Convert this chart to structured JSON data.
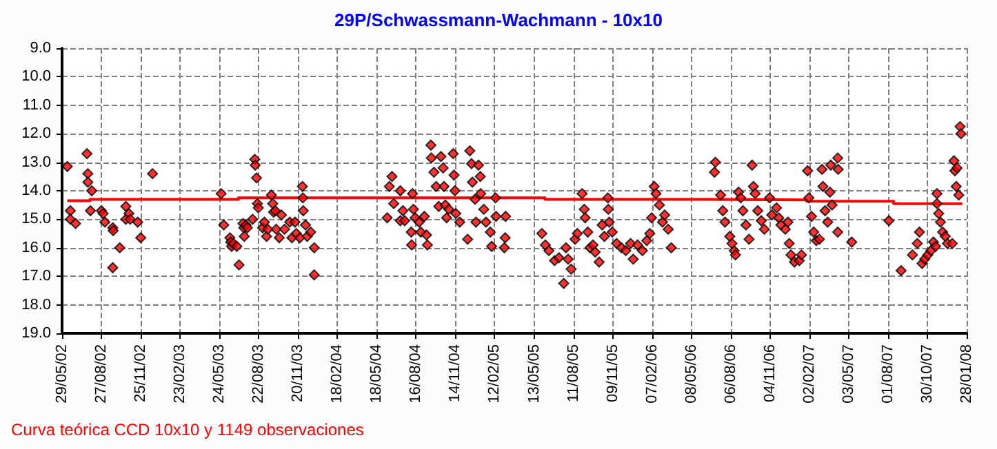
{
  "chart_data": {
    "type": "scatter",
    "title": "29P/Schwassmann-Wachmann - 10x10",
    "annotations": [
      "Curva teórica CCD 10x10 y 1149 observaciones"
    ],
    "grid": true,
    "xlim": [
      "2002-05-29",
      "2008-01-28"
    ],
    "xticks": [
      {
        "value": "2002-05-29",
        "label": "29/05/02"
      },
      {
        "value": "2002-08-27",
        "label": "27/08/02"
      },
      {
        "value": "2002-11-25",
        "label": "25/11/02"
      },
      {
        "value": "2003-02-23",
        "label": "23/02/03"
      },
      {
        "value": "2003-05-24",
        "label": "24/05/03"
      },
      {
        "value": "2003-08-22",
        "label": "22/08/03"
      },
      {
        "value": "2003-11-20",
        "label": "20/11/03"
      },
      {
        "value": "2004-02-18",
        "label": "18/02/04"
      },
      {
        "value": "2004-05-18",
        "label": "18/05/04"
      },
      {
        "value": "2004-08-16",
        "label": "16/08/04"
      },
      {
        "value": "2004-11-14",
        "label": "14/11/04"
      },
      {
        "value": "2005-02-12",
        "label": "12/02/05"
      },
      {
        "value": "2005-05-13",
        "label": "13/05/05"
      },
      {
        "value": "2005-08-11",
        "label": "11/08/05"
      },
      {
        "value": "2005-11-09",
        "label": "09/11/05"
      },
      {
        "value": "2006-02-07",
        "label": "07/02/06"
      },
      {
        "value": "2006-05-08",
        "label": "08/05/06"
      },
      {
        "value": "2006-08-06",
        "label": "06/08/06"
      },
      {
        "value": "2006-11-04",
        "label": "04/11/06"
      },
      {
        "value": "2007-02-02",
        "label": "02/02/07"
      },
      {
        "value": "2007-05-03",
        "label": "03/05/07"
      },
      {
        "value": "2007-08-01",
        "label": "01/08/07"
      },
      {
        "value": "2007-10-30",
        "label": "30/10/07"
      },
      {
        "value": "2008-01-28",
        "label": "28/01/08"
      }
    ],
    "ylim": [
      19,
      9
    ],
    "yticks": [
      {
        "value": 9,
        "label": "9.0"
      },
      {
        "value": 10,
        "label": "10.0"
      },
      {
        "value": 11,
        "label": "11.0"
      },
      {
        "value": 12,
        "label": "12.0"
      },
      {
        "value": 13,
        "label": "13.0"
      },
      {
        "value": 14,
        "label": "14.0"
      },
      {
        "value": 15,
        "label": "15.0"
      },
      {
        "value": 16,
        "label": "16.0"
      },
      {
        "value": 17,
        "label": "17.0"
      },
      {
        "value": 18,
        "label": "18.0"
      },
      {
        "value": 19,
        "label": "19.0"
      }
    ],
    "series": [
      {
        "color": "#ff0000",
        "marker": "diamond",
        "x": [
          "2002-06-10",
          "2002-06-17",
          "2002-06-17",
          "2002-06-29",
          "2002-07-25",
          "2002-07-27",
          "2002-07-27",
          "2002-08-05",
          "2002-08-02",
          "2002-08-27",
          "2002-08-31",
          "2002-09-04",
          "2002-09-22",
          "2002-09-23",
          "2002-09-22",
          "2002-10-08",
          "2002-10-22",
          "2002-10-22",
          "2002-10-29",
          "2002-11-01",
          "2002-11-18",
          "2002-11-25",
          "2002-12-22",
          "2003-05-28",
          "2003-06-03",
          "2003-06-17",
          "2003-06-19",
          "2003-06-21",
          "2003-06-25",
          "2003-07-03",
          "2003-07-08",
          "2003-07-17",
          "2003-07-19",
          "2003-07-20",
          "2003-07-24",
          "2003-07-27",
          "2003-08-08",
          "2003-08-13",
          "2003-08-14",
          "2003-08-17",
          "2003-08-19",
          "2003-08-21",
          "2003-08-31",
          "2003-09-04",
          "2003-09-09",
          "2003-09-12",
          "2003-09-20",
          "2003-09-23",
          "2003-09-25",
          "2003-09-29",
          "2003-10-01",
          "2003-10-08",
          "2003-10-13",
          "2003-10-20",
          "2003-11-01",
          "2003-11-06",
          "2003-11-13",
          "2003-11-16",
          "2003-11-24",
          "2003-11-30",
          "2003-12-01",
          "2003-12-02",
          "2003-12-07",
          "2003-12-11",
          "2003-12-19",
          "2003-12-27",
          "2003-12-27",
          "2004-06-11",
          "2004-06-16",
          "2004-06-22",
          "2004-06-26",
          "2004-07-11",
          "2004-07-11",
          "2004-07-17",
          "2004-07-21",
          "2004-08-05",
          "2004-08-08",
          "2004-08-10",
          "2004-08-14",
          "2004-08-06",
          "2004-08-23",
          "2004-08-27",
          "2004-09-04",
          "2004-09-09",
          "2004-09-11",
          "2004-09-19",
          "2004-09-20",
          "2004-09-26",
          "2004-10-01",
          "2004-10-07",
          "2004-10-12",
          "2004-10-17",
          "2004-10-19",
          "2004-10-22",
          "2004-10-25",
          "2004-10-30",
          "2004-11-09",
          "2004-11-11",
          "2004-11-13",
          "2004-11-15",
          "2004-11-24",
          "2004-12-12",
          "2004-12-17",
          "2004-12-21",
          "2004-12-23",
          "2004-12-29",
          "2004-12-31",
          "2005-01-06",
          "2005-01-10",
          "2005-01-11",
          "2005-01-18",
          "2005-01-23",
          "2005-02-02",
          "2005-02-05",
          "2005-02-14",
          "2005-02-15",
          "2005-03-06",
          "2005-03-08",
          "2005-03-09",
          "2005-05-31",
          "2005-06-08",
          "2005-06-16",
          "2005-06-29",
          "2005-07-09",
          "2005-07-20",
          "2005-07-25",
          "2005-07-30",
          "2005-08-06",
          "2005-08-15",
          "2005-08-20",
          "2005-08-31",
          "2005-09-05",
          "2005-09-07",
          "2005-09-13",
          "2005-09-18",
          "2005-09-25",
          "2005-09-30",
          "2005-10-09",
          "2005-10-16",
          "2005-10-21",
          "2005-10-29",
          "2005-10-30",
          "2005-11-01",
          "2005-11-08",
          "2005-11-18",
          "2005-11-29",
          "2005-12-09",
          "2005-12-20",
          "2005-12-26",
          "2006-01-05",
          "2006-01-16",
          "2006-01-26",
          "2006-02-02",
          "2006-02-06",
          "2006-02-12",
          "2006-02-16",
          "2006-02-24",
          "2006-03-03",
          "2006-03-08",
          "2006-03-16",
          "2006-03-23",
          "2006-07-02",
          "2006-06-30",
          "2006-07-14",
          "2006-07-19",
          "2006-07-24",
          "2006-08-04",
          "2006-08-09",
          "2006-08-14",
          "2006-08-17",
          "2006-08-24",
          "2006-08-29",
          "2006-09-03",
          "2006-09-10",
          "2006-09-17",
          "2006-09-24",
          "2006-09-27",
          "2006-10-01",
          "2006-10-07",
          "2006-10-15",
          "2006-10-22",
          "2006-11-03",
          "2006-11-08",
          "2006-11-19",
          "2006-11-24",
          "2006-11-29",
          "2006-12-09",
          "2006-12-15",
          "2006-12-18",
          "2006-12-22",
          "2006-12-30",
          "2007-01-10",
          "2007-01-15",
          "2007-01-29",
          "2007-02-01",
          "2007-02-07",
          "2007-02-12",
          "2007-02-18",
          "2007-02-25",
          "2007-03-03",
          "2007-03-05",
          "2007-03-10",
          "2007-03-16",
          "2007-03-21",
          "2007-03-23",
          "2007-03-26",
          "2007-04-08",
          "2007-04-09",
          "2007-04-08",
          "2007-05-10",
          "2007-08-03",
          "2007-08-31",
          "2007-09-26",
          "2007-10-07",
          "2007-10-12",
          "2007-10-18",
          "2007-10-24",
          "2007-10-31",
          "2007-11-07",
          "2007-11-13",
          "2007-11-18",
          "2007-11-21",
          "2007-11-21",
          "2007-11-25",
          "2007-11-29",
          "2007-12-04",
          "2007-12-10",
          "2007-12-15",
          "2007-12-26",
          "2007-12-30",
          "2008-01-01",
          "2008-01-04",
          "2008-01-06",
          "2008-01-10",
          "2008-01-13",
          "2008-01-15"
        ],
        "values": [
          13.15,
          14.7,
          15.0,
          15.15,
          12.7,
          13.4,
          13.7,
          14.0,
          14.7,
          14.7,
          14.8,
          15.1,
          15.3,
          15.4,
          16.7,
          16.0,
          14.55,
          15.0,
          14.8,
          15.0,
          15.1,
          15.65,
          13.4,
          14.1,
          15.2,
          15.65,
          15.8,
          15.95,
          15.85,
          15.95,
          16.6,
          15.15,
          15.3,
          15.6,
          15.2,
          15.3,
          15.0,
          12.9,
          13.1,
          13.55,
          14.45,
          14.6,
          15.3,
          15.1,
          15.6,
          15.35,
          14.15,
          14.45,
          14.75,
          14.7,
          15.35,
          15.65,
          14.85,
          15.35,
          15.1,
          15.65,
          15.1,
          15.5,
          15.65,
          13.85,
          14.25,
          14.7,
          15.2,
          15.6,
          15.45,
          16.0,
          16.95,
          14.95,
          13.85,
          13.5,
          14.45,
          14.0,
          15.05,
          14.7,
          15.05,
          15.45,
          14.1,
          14.65,
          14.95,
          15.9,
          15.1,
          15.45,
          14.9,
          15.55,
          15.9,
          12.4,
          12.85,
          13.35,
          13.85,
          14.55,
          12.8,
          13.2,
          13.85,
          14.5,
          14.95,
          14.65,
          12.7,
          13.45,
          14.0,
          14.8,
          15.1,
          15.7,
          12.6,
          13.05,
          13.7,
          14.3,
          15.1,
          13.1,
          13.5,
          14.1,
          14.65,
          15.1,
          15.45,
          15.95,
          14.25,
          14.9,
          16.0,
          15.65,
          14.9,
          15.5,
          15.9,
          16.1,
          16.45,
          16.35,
          17.25,
          16.0,
          16.4,
          16.75,
          15.7,
          15.5,
          14.1,
          14.65,
          14.95,
          15.45,
          16.0,
          15.9,
          16.15,
          16.5,
          15.2,
          15.6,
          14.25,
          14.65,
          15.1,
          15.45,
          15.85,
          16.0,
          16.1,
          15.85,
          16.4,
          15.9,
          16.1,
          15.75,
          15.5,
          14.95,
          13.85,
          14.1,
          14.5,
          15.1,
          14.85,
          15.35,
          16.0,
          13.0,
          13.35,
          14.15,
          14.7,
          15.1,
          15.6,
          15.85,
          16.1,
          16.25,
          14.05,
          14.25,
          14.7,
          15.2,
          15.7,
          13.1,
          13.85,
          14.1,
          14.7,
          15.05,
          15.35,
          14.25,
          14.85,
          14.6,
          14.95,
          15.2,
          15.35,
          15.1,
          15.85,
          16.25,
          16.5,
          16.45,
          16.25,
          13.3,
          14.25,
          14.9,
          15.45,
          15.75,
          15.7,
          13.25,
          13.85,
          14.7,
          15.1,
          14.05,
          13.1,
          14.5,
          12.85,
          13.25,
          15.45,
          15.8,
          15.05,
          16.8,
          16.25,
          15.85,
          15.45,
          16.55,
          16.4,
          16.25,
          16.1,
          15.8,
          15.95,
          14.1,
          14.45,
          14.8,
          15.1,
          15.45,
          15.6,
          15.85,
          15.85,
          12.95,
          13.3,
          13.85,
          13.2,
          14.15,
          11.75,
          12.0
        ]
      },
      {
        "type": "step",
        "color": "#ff0000",
        "x": [
          "2002-06-10",
          "2002-08-01",
          "2003-07-07",
          "2005-06-07",
          "2006-05-08",
          "2007-01-27",
          "2007-08-14",
          "2008-01-18"
        ],
        "values": [
          14.35,
          14.3,
          14.25,
          14.3,
          14.32,
          14.37,
          14.45,
          14.45
        ]
      }
    ]
  }
}
